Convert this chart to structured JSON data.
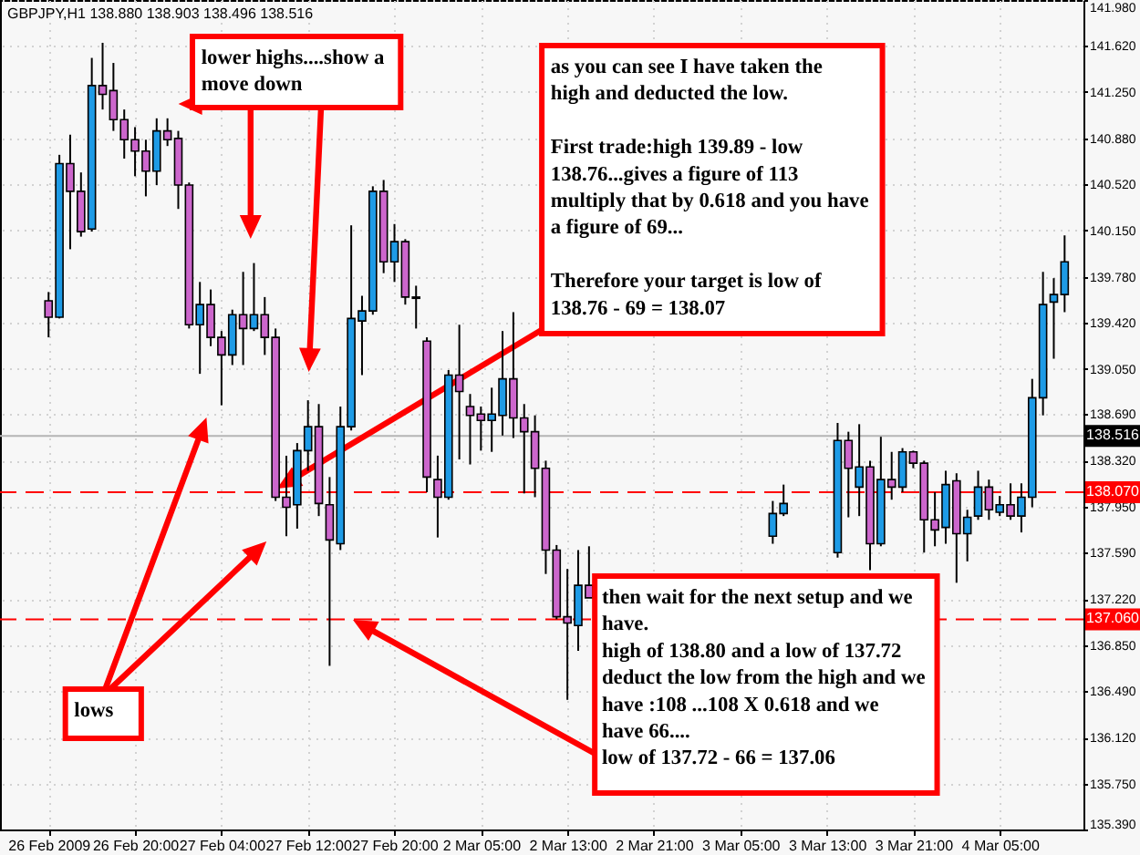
{
  "chart_data": {
    "type": "candlestick",
    "title": "GBPJPY,H1  138.880 138.903 138.496 138.516",
    "categories": [
      "26 Feb 2009",
      null,
      null,
      null,
      null,
      null,
      null,
      null,
      "26 Feb 20:00",
      null,
      null,
      null,
      null,
      null,
      null,
      null,
      "27 Feb 04:00",
      null,
      null,
      null,
      null,
      null,
      null,
      null,
      "27 Feb 12:00",
      null,
      null,
      null,
      null,
      null,
      null,
      null,
      "27 Feb 20:00",
      null,
      null,
      null,
      null,
      null,
      null,
      null,
      "2 Mar 05:00",
      null,
      null,
      null,
      null,
      null,
      null,
      null,
      "2 Mar 13:00",
      null,
      null,
      null,
      null,
      null,
      null,
      null,
      "2 Mar 21:00",
      null,
      null,
      null,
      null,
      null,
      null,
      null,
      "3 Mar 05:00",
      null,
      null,
      null,
      null,
      null,
      null,
      null,
      "3 Mar 13:00",
      null,
      null,
      null,
      null,
      null,
      null,
      null,
      "3 Mar 21:00",
      null,
      null,
      null,
      null,
      null,
      null,
      null,
      "4 Mar 05:00",
      null,
      null,
      null,
      null,
      null,
      null
    ],
    "ohlc": [
      [
        139.59,
        139.66,
        139.3,
        139.46
      ],
      [
        139.46,
        140.75,
        139.45,
        140.68
      ],
      [
        140.68,
        140.91,
        140.0,
        140.46
      ],
      [
        140.46,
        140.61,
        140.1,
        140.14
      ],
      [
        140.16,
        141.52,
        140.14,
        141.3
      ],
      [
        141.3,
        141.64,
        141.11,
        141.23
      ],
      [
        141.26,
        141.48,
        140.94,
        141.03
      ],
      [
        141.03,
        141.11,
        140.72,
        140.87
      ],
      [
        140.87,
        140.97,
        140.58,
        140.78
      ],
      [
        140.78,
        140.87,
        140.42,
        140.62
      ],
      [
        140.62,
        141.04,
        140.51,
        140.94
      ],
      [
        140.94,
        141.04,
        140.82,
        140.87
      ],
      [
        140.88,
        140.94,
        140.32,
        140.51
      ],
      [
        140.51,
        140.53,
        139.37,
        139.4
      ],
      [
        139.4,
        139.74,
        139.01,
        139.56
      ],
      [
        139.56,
        139.68,
        139.23,
        139.3
      ],
      [
        139.3,
        139.35,
        138.76,
        139.16
      ],
      [
        139.16,
        139.52,
        139.08,
        139.48
      ],
      [
        139.48,
        139.82,
        139.08,
        139.37
      ],
      [
        139.37,
        139.89,
        139.35,
        139.48
      ],
      [
        139.48,
        139.62,
        139.16,
        139.3
      ],
      [
        139.3,
        139.37,
        138.0,
        138.03
      ],
      [
        138.03,
        138.36,
        137.72,
        137.95
      ],
      [
        137.97,
        138.46,
        137.78,
        138.4
      ],
      [
        138.4,
        138.8,
        138.24,
        138.59
      ],
      [
        138.59,
        138.77,
        137.88,
        137.98
      ],
      [
        137.97,
        138.19,
        136.69,
        137.69
      ],
      [
        137.66,
        138.75,
        137.61,
        138.59
      ],
      [
        138.59,
        140.19,
        138.56,
        139.45
      ],
      [
        139.43,
        139.63,
        139.0,
        139.51
      ],
      [
        139.51,
        140.5,
        139.48,
        140.46
      ],
      [
        140.46,
        140.55,
        139.81,
        139.9
      ],
      [
        139.9,
        140.2,
        139.74,
        140.06
      ],
      [
        140.06,
        140.08,
        139.56,
        139.62
      ],
      [
        139.62,
        139.71,
        139.37,
        139.61
      ],
      [
        139.27,
        139.3,
        138.07,
        138.19
      ],
      [
        138.17,
        138.36,
        137.71,
        138.03
      ],
      [
        138.03,
        139.04,
        138.01,
        139.0
      ],
      [
        139.0,
        139.4,
        138.33,
        138.87
      ],
      [
        138.75,
        138.85,
        138.29,
        138.68
      ],
      [
        138.69,
        138.75,
        138.4,
        138.64
      ],
      [
        138.64,
        138.9,
        138.39,
        138.69
      ],
      [
        138.68,
        139.35,
        138.52,
        138.97
      ],
      [
        138.97,
        139.5,
        138.5,
        138.66
      ],
      [
        138.66,
        138.77,
        138.06,
        138.55
      ],
      [
        138.55,
        138.68,
        138.03,
        138.26
      ],
      [
        138.26,
        138.32,
        137.42,
        137.61
      ],
      [
        137.61,
        137.65,
        137.06,
        137.08
      ],
      [
        137.08,
        137.46,
        136.42,
        137.03
      ],
      [
        137.01,
        137.61,
        136.81,
        137.33
      ],
      [
        137.33,
        137.64,
        137.23,
        137.23
      ],
      null,
      null,
      null,
      null,
      null,
      null,
      null,
      null,
      null,
      null,
      null,
      null,
      null,
      null,
      null,
      null,
      [
        137.72,
        138.0,
        137.66,
        137.9
      ],
      [
        137.9,
        138.13,
        137.88,
        137.98
      ],
      null,
      null,
      null,
      null,
      [
        137.59,
        138.62,
        137.55,
        138.48
      ],
      [
        138.48,
        138.55,
        137.87,
        138.26
      ],
      [
        138.11,
        138.61,
        137.88,
        138.27
      ],
      [
        138.27,
        138.32,
        137.45,
        137.66
      ],
      [
        137.66,
        138.51,
        137.64,
        138.17
      ],
      [
        138.17,
        138.39,
        138.01,
        138.11
      ],
      [
        138.11,
        138.42,
        138.07,
        138.39
      ],
      [
        138.39,
        138.4,
        138.26,
        138.3
      ],
      [
        138.3,
        138.32,
        137.59,
        137.85
      ],
      [
        137.85,
        138.07,
        137.64,
        137.77
      ],
      [
        137.79,
        138.24,
        137.66,
        138.13
      ],
      [
        138.16,
        138.22,
        137.35,
        137.74
      ],
      [
        137.74,
        137.93,
        137.52,
        137.87
      ],
      [
        137.88,
        138.24,
        137.85,
        138.11
      ],
      [
        138.11,
        138.17,
        137.85,
        137.93
      ],
      [
        137.91,
        138.04,
        137.88,
        137.97
      ],
      [
        137.97,
        138.14,
        137.85,
        137.88
      ],
      [
        137.88,
        138.14,
        137.75,
        138.03
      ],
      [
        138.03,
        138.97,
        137.95,
        138.82
      ],
      [
        138.82,
        139.82,
        138.68,
        139.56
      ],
      [
        139.58,
        139.77,
        139.13,
        139.64
      ],
      [
        139.64,
        140.11,
        139.5,
        139.9
      ]
    ],
    "colors": [
      "#cc66cc",
      "#1e9be6",
      "#cc66cc",
      "#cc66cc",
      "#1e9be6",
      "#cc66cc",
      "#cc66cc",
      "#cc66cc",
      "#cc66cc",
      "#cc66cc",
      "#1e9be6",
      "#cc66cc",
      "#cc66cc",
      "#cc66cc",
      "#1e9be6",
      "#cc66cc",
      "#cc66cc",
      "#1e9be6",
      "#cc66cc",
      "#1e9be6",
      "#cc66cc",
      "#cc66cc",
      "#cc66cc",
      "#1e9be6",
      "#1e9be6",
      "#cc66cc",
      "#cc66cc",
      "#1e9be6",
      "#1e9be6",
      "#1e9be6",
      "#1e9be6",
      "#cc66cc",
      "#1e9be6",
      "#cc66cc",
      "#cc66cc",
      "#cc66cc",
      "#cc66cc",
      "#1e9be6",
      "#cc66cc",
      "#cc66cc",
      "#cc66cc",
      "#1e9be6",
      "#1e9be6",
      "#cc66cc",
      "#cc66cc",
      "#cc66cc",
      "#cc66cc",
      "#cc66cc",
      "#cc66cc",
      "#1e9be6",
      "#cc66cc",
      null,
      null,
      null,
      null,
      null,
      null,
      null,
      null,
      null,
      null,
      null,
      null,
      null,
      null,
      null,
      null,
      "#1e9be6",
      "#1e9be6",
      null,
      null,
      null,
      null,
      "#1e9be6",
      "#cc66cc",
      "#1e9be6",
      "#cc66cc",
      "#1e9be6",
      "#cc66cc",
      "#1e9be6",
      "#cc66cc",
      "#cc66cc",
      "#cc66cc",
      "#1e9be6",
      "#cc66cc",
      "#1e9be6",
      "#1e9be6",
      "#cc66cc",
      "#1e9be6",
      "#cc66cc",
      "#1e9be6",
      "#1e9be6",
      "#1e9be6",
      "#1e9be6",
      "#1e9be6"
    ],
    "ylim": [
      135.39,
      141.98
    ],
    "yticks": [
      {
        "value": 141.98,
        "label": "141.980"
      },
      {
        "value": 141.62,
        "label": "141.620"
      },
      {
        "value": 141.25,
        "label": "141.250"
      },
      {
        "value": 140.88,
        "label": "140.880"
      },
      {
        "value": 140.52,
        "label": "140.520"
      },
      {
        "value": 140.15,
        "label": "140.150"
      },
      {
        "value": 139.78,
        "label": "139.780"
      },
      {
        "value": 139.42,
        "label": "139.420"
      },
      {
        "value": 139.05,
        "label": "139.050"
      },
      {
        "value": 138.69,
        "label": "138.690"
      },
      {
        "value": 138.32,
        "label": "138.320"
      },
      {
        "value": 137.95,
        "label": "137.950"
      },
      {
        "value": 137.59,
        "label": "137.590"
      },
      {
        "value": 137.22,
        "label": "137.220"
      },
      {
        "value": 136.85,
        "label": "136.850"
      },
      {
        "value": 136.49,
        "label": "136.490"
      },
      {
        "value": 136.12,
        "label": "136.120"
      },
      {
        "value": 135.75,
        "label": "135.750"
      },
      {
        "value": 135.39,
        "label": "135.390"
      }
    ],
    "grid": true,
    "ref_lines": [
      {
        "axis": "y",
        "value": 138.516,
        "label": "138.516",
        "color": "#b4b4b4",
        "line_style": "solid"
      },
      {
        "axis": "y",
        "value": 138.07,
        "label": "138.070",
        "color": "#ff0000",
        "line_style": "dashed"
      },
      {
        "axis": "y",
        "value": 137.06,
        "label": "137.060",
        "color": "#ff0000",
        "line_style": "dashed"
      }
    ],
    "annotations": [
      "lower highs....show a\nmove down",
      "as you can see I have taken the\nhigh and deducted the  low.\n\nFirst trade:high 139.89 - low\n138.76...gives a figure of 113\nmultiply that by 0.618 and you have\na figure of 69...\n\nTherefore your target is low of\n138.76  - 69 = 138.07",
      "then wait for the next setup and we\nhave.\nhigh of 138.80 and a low of 137.72\ndeduct the low from the high and we\nhave :108 ...108 X 0.618 and we\nhave 66....\nlow of 137.72 - 66 = 137.06",
      "lows"
    ]
  }
}
